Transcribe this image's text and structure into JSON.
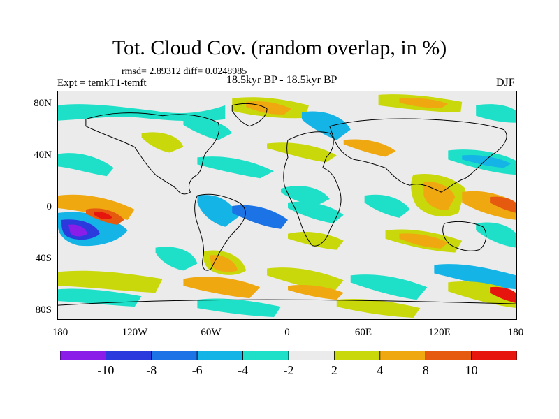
{
  "header": {
    "title": "Tot. Cloud Cov. (random overlap, in %)",
    "stats": "rmsd= 2.89312 diff= 0.0248985",
    "experiment": "Expt = temkT1-temft",
    "period": "18.5kyr BP - 18.5kyr BP",
    "season": "DJF"
  },
  "axes": {
    "y_labels": [
      "80N",
      "40N",
      "0",
      "40S",
      "80S"
    ],
    "x_labels": [
      "180",
      "120W",
      "60W",
      "0",
      "60E",
      "120E",
      "180"
    ]
  },
  "colorbar": {
    "labels": [
      "-10",
      "-8",
      "-6",
      "-4",
      "-2",
      "2",
      "4",
      "8",
      "10"
    ],
    "colors": [
      "#8a1ee8",
      "#2a3adc",
      "#1b73e6",
      "#14b5e6",
      "#1ee0c8",
      "#ebebeb",
      "#c9d80a",
      "#f0a810",
      "#e65a10",
      "#e6150e"
    ]
  },
  "map_colors": {
    "neutral": "#ebebeb",
    "coast": "#000000"
  }
}
